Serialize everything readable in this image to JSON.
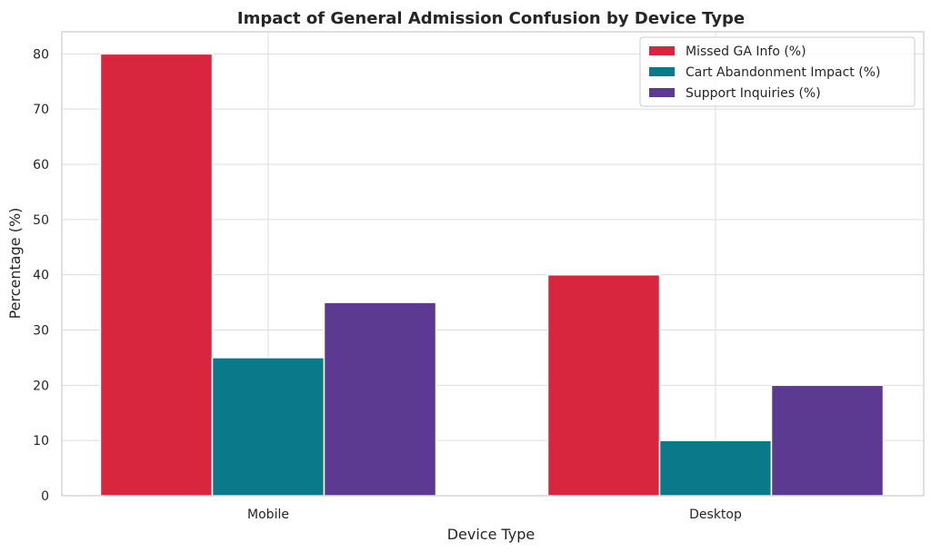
{
  "chart_data": {
    "type": "bar",
    "title": "Impact of General Admission Confusion by Device Type",
    "xlabel": "Device Type",
    "ylabel": "Percentage (%)",
    "categories": [
      "Mobile",
      "Desktop"
    ],
    "series": [
      {
        "name": "Missed GA Info (%)",
        "values": [
          80,
          40
        ],
        "color": "#d7263d"
      },
      {
        "name": "Cart Abandonment Impact (%)",
        "values": [
          25,
          10
        ],
        "color": "#0a7a8a"
      },
      {
        "name": "Support Inquiries (%)",
        "values": [
          35,
          20
        ],
        "color": "#5c3a92"
      }
    ],
    "ylim": [
      0,
      84
    ],
    "yticks": [
      0,
      10,
      20,
      30,
      40,
      50,
      60,
      70,
      80
    ],
    "grid": true,
    "legend_position": "top-right"
  }
}
